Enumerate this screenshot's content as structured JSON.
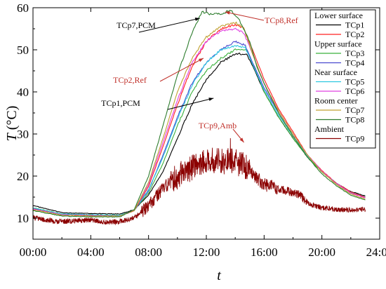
{
  "chart_data": {
    "type": "line",
    "xlabel": "t",
    "ylabel_italic": "T",
    "ylabel_unit": " (°C)",
    "xlim": [
      0,
      24
    ],
    "ylim": [
      5,
      60
    ],
    "x_ticks": [
      {
        "value": 0,
        "label": "00:00"
      },
      {
        "value": 4,
        "label": "04:00"
      },
      {
        "value": 8,
        "label": "08:00"
      },
      {
        "value": 12,
        "label": "12:00"
      },
      {
        "value": 16,
        "label": "16:00"
      },
      {
        "value": 20,
        "label": "20:00"
      },
      {
        "value": 24,
        "label": "24:00"
      }
    ],
    "y_ticks": [
      {
        "value": 10,
        "label": "10"
      },
      {
        "value": 20,
        "label": "20"
      },
      {
        "value": 30,
        "label": "30"
      },
      {
        "value": 40,
        "label": "40"
      },
      {
        "value": 50,
        "label": "50"
      },
      {
        "value": 60,
        "label": "60"
      }
    ],
    "grid": false,
    "legend_position": "top-right",
    "legend": [
      {
        "group": "Lower surface",
        "entries": [
          "TCp1",
          "TCp2"
        ]
      },
      {
        "group": "Upper surface",
        "entries": [
          "TCp3",
          "TCp4"
        ]
      },
      {
        "group": "Near surface",
        "entries": [
          "TCp5",
          "TCp6"
        ]
      },
      {
        "group": "Room center",
        "entries": [
          "TCp7",
          "TCp8"
        ]
      },
      {
        "group": "Ambient",
        "entries": [
          "TCp9"
        ]
      }
    ],
    "series": [
      {
        "name": "TCp1",
        "color": "#000000",
        "points": [
          [
            0,
            13.0
          ],
          [
            2,
            11.3
          ],
          [
            4,
            11.1
          ],
          [
            6,
            11.0
          ],
          [
            7,
            12.0
          ],
          [
            8,
            15.5
          ],
          [
            9,
            21
          ],
          [
            10,
            29
          ],
          [
            11,
            37
          ],
          [
            12,
            43
          ],
          [
            13,
            47
          ],
          [
            14,
            49
          ],
          [
            14.8,
            49
          ],
          [
            15.3,
            45.5
          ],
          [
            16,
            40
          ],
          [
            17,
            34
          ],
          [
            18,
            29
          ],
          [
            19,
            24.5
          ],
          [
            20,
            21
          ],
          [
            21,
            18.3
          ],
          [
            22,
            16.3
          ],
          [
            23,
            15.3
          ]
        ]
      },
      {
        "name": "TCp2",
        "color": "#ff2020",
        "points": [
          [
            0,
            12.2
          ],
          [
            2,
            10.8
          ],
          [
            4,
            10.6
          ],
          [
            6,
            10.5
          ],
          [
            7,
            11.8
          ],
          [
            8,
            17.5
          ],
          [
            9,
            27
          ],
          [
            10,
            37
          ],
          [
            11,
            46
          ],
          [
            12,
            52
          ],
          [
            13,
            55
          ],
          [
            14,
            56
          ],
          [
            14.6,
            55
          ],
          [
            15.2,
            50
          ],
          [
            16,
            43
          ],
          [
            17,
            36
          ],
          [
            18,
            30.5
          ],
          [
            19,
            25
          ],
          [
            20,
            21.3
          ],
          [
            21,
            18.3
          ],
          [
            22,
            16.2
          ],
          [
            23,
            15
          ]
        ]
      },
      {
        "name": "TCp3",
        "color": "#39b03a",
        "points": [
          [
            0,
            12.5
          ],
          [
            2,
            11.0
          ],
          [
            4,
            10.8
          ],
          [
            6,
            10.7
          ],
          [
            7,
            11.8
          ],
          [
            8,
            16
          ],
          [
            9,
            23
          ],
          [
            10,
            32
          ],
          [
            11,
            40
          ],
          [
            12,
            45
          ],
          [
            13,
            48
          ],
          [
            14,
            50
          ],
          [
            14.8,
            50
          ],
          [
            15.3,
            46
          ],
          [
            16,
            40
          ],
          [
            17,
            34
          ],
          [
            18,
            29
          ],
          [
            19,
            24.5
          ],
          [
            20,
            21
          ],
          [
            21,
            18.2
          ],
          [
            22,
            16.2
          ],
          [
            23,
            15
          ]
        ]
      },
      {
        "name": "TCp4",
        "color": "#4a4ad0",
        "points": [
          [
            0,
            12.3
          ],
          [
            2,
            10.9
          ],
          [
            4,
            10.7
          ],
          [
            6,
            10.6
          ],
          [
            7,
            11.8
          ],
          [
            8,
            16.5
          ],
          [
            9,
            25
          ],
          [
            10,
            34
          ],
          [
            11,
            42
          ],
          [
            12,
            47
          ],
          [
            13,
            50
          ],
          [
            14,
            52
          ],
          [
            14.7,
            51
          ],
          [
            15.2,
            47
          ],
          [
            16,
            41
          ],
          [
            17,
            35
          ],
          [
            18,
            29.5
          ],
          [
            19,
            25
          ],
          [
            20,
            21.2
          ],
          [
            21,
            18.3
          ],
          [
            22,
            16.2
          ],
          [
            23,
            15
          ]
        ]
      },
      {
        "name": "TCp5",
        "color": "#2cc8e0",
        "points": [
          [
            0,
            12.4
          ],
          [
            2,
            11.0
          ],
          [
            4,
            10.8
          ],
          [
            6,
            10.7
          ],
          [
            7,
            11.8
          ],
          [
            8,
            16.8
          ],
          [
            9,
            24.5
          ],
          [
            10,
            33.5
          ],
          [
            11,
            41.5
          ],
          [
            12,
            47
          ],
          [
            13,
            50
          ],
          [
            14,
            51
          ],
          [
            14.7,
            50.5
          ],
          [
            15.2,
            46.5
          ],
          [
            16,
            40.5
          ],
          [
            17,
            34.5
          ],
          [
            18,
            29.5
          ],
          [
            19,
            24.8
          ],
          [
            20,
            21.2
          ],
          [
            21,
            18.3
          ],
          [
            22,
            16.2
          ],
          [
            23,
            15
          ]
        ]
      },
      {
        "name": "TCp6",
        "color": "#e040e0",
        "points": [
          [
            0,
            12.2
          ],
          [
            2,
            10.8
          ],
          [
            4,
            10.6
          ],
          [
            6,
            10.5
          ],
          [
            7,
            11.8
          ],
          [
            8,
            18
          ],
          [
            9,
            28
          ],
          [
            10,
            38
          ],
          [
            11,
            47
          ],
          [
            12,
            52
          ],
          [
            13,
            54.5
          ],
          [
            14,
            55
          ],
          [
            14.6,
            54
          ],
          [
            15.2,
            49
          ],
          [
            16,
            42
          ],
          [
            17,
            35.5
          ],
          [
            18,
            30
          ],
          [
            19,
            25
          ],
          [
            20,
            21.2
          ],
          [
            21,
            18.2
          ],
          [
            22,
            16
          ],
          [
            23,
            14.8
          ]
        ]
      },
      {
        "name": "TCp7",
        "color": "#c0a030",
        "points": [
          [
            0,
            12.0
          ],
          [
            2,
            10.7
          ],
          [
            4,
            10.5
          ],
          [
            6,
            10.5
          ],
          [
            7,
            11.8
          ],
          [
            8,
            18.5
          ],
          [
            9,
            29
          ],
          [
            10,
            40
          ],
          [
            11,
            48
          ],
          [
            12,
            53
          ],
          [
            13,
            55.5
          ],
          [
            14,
            56.5
          ],
          [
            14.6,
            55
          ],
          [
            15.2,
            49
          ],
          [
            16,
            42
          ],
          [
            17,
            35.5
          ],
          [
            18,
            30
          ],
          [
            19,
            25
          ],
          [
            20,
            21
          ],
          [
            21,
            18
          ],
          [
            22,
            15.8
          ],
          [
            23,
            14.5
          ]
        ]
      },
      {
        "name": "TCp8",
        "color": "#2e7d2e",
        "points": [
          [
            0,
            11.8
          ],
          [
            2,
            10.5
          ],
          [
            4,
            10.3
          ],
          [
            6,
            10.3
          ],
          [
            7,
            12
          ],
          [
            8,
            20
          ],
          [
            9,
            32
          ],
          [
            10,
            44
          ],
          [
            11,
            54
          ],
          [
            11.7,
            59
          ],
          [
            12.3,
            58.5
          ],
          [
            13,
            58.5
          ],
          [
            13.7,
            59.5
          ],
          [
            14.3,
            57
          ],
          [
            15,
            52
          ],
          [
            15.5,
            46
          ],
          [
            16,
            42
          ],
          [
            17,
            35
          ],
          [
            18,
            29.5
          ],
          [
            19,
            24.5
          ],
          [
            20,
            20.5
          ],
          [
            21,
            17.7
          ],
          [
            22,
            15.5
          ],
          [
            23,
            14.3
          ]
        ]
      },
      {
        "name": "TCp9",
        "color": "#8b0000",
        "points": [
          [
            0,
            10.2
          ],
          [
            1,
            9.5
          ],
          [
            2,
            9.2
          ],
          [
            3,
            9.3
          ],
          [
            4,
            9.6
          ],
          [
            5,
            9.0
          ],
          [
            6,
            9.2
          ],
          [
            7,
            10
          ],
          [
            8,
            13
          ],
          [
            9,
            17
          ],
          [
            10,
            20
          ],
          [
            11,
            22
          ],
          [
            12,
            24
          ],
          [
            13,
            23.5
          ],
          [
            14,
            23.5
          ],
          [
            14.8,
            22
          ],
          [
            15.5,
            19.5
          ],
          [
            16,
            18
          ],
          [
            17,
            17
          ],
          [
            18,
            16
          ],
          [
            18.5,
            15.5
          ],
          [
            19,
            13.5
          ],
          [
            20,
            12.5
          ],
          [
            21,
            12
          ],
          [
            22,
            12
          ],
          [
            23,
            12
          ]
        ]
      }
    ],
    "annotations": [
      {
        "text": "TCp7,PCM",
        "style": "black",
        "arrow_to": [
          11.55,
          57.5
        ]
      },
      {
        "text": "TCp8,Ref",
        "style": "red",
        "arrow_to": [
          13.3,
          59
        ]
      },
      {
        "text": "TCp2,Ref",
        "style": "red",
        "arrow_to": [
          11.8,
          48
        ]
      },
      {
        "text": "TCp1,PCM",
        "style": "black",
        "arrow_to": [
          12.5,
          38.5
        ]
      },
      {
        "text": "TCp9,Amb",
        "style": "red",
        "arrow_to": [
          14.6,
          28
        ]
      }
    ]
  }
}
